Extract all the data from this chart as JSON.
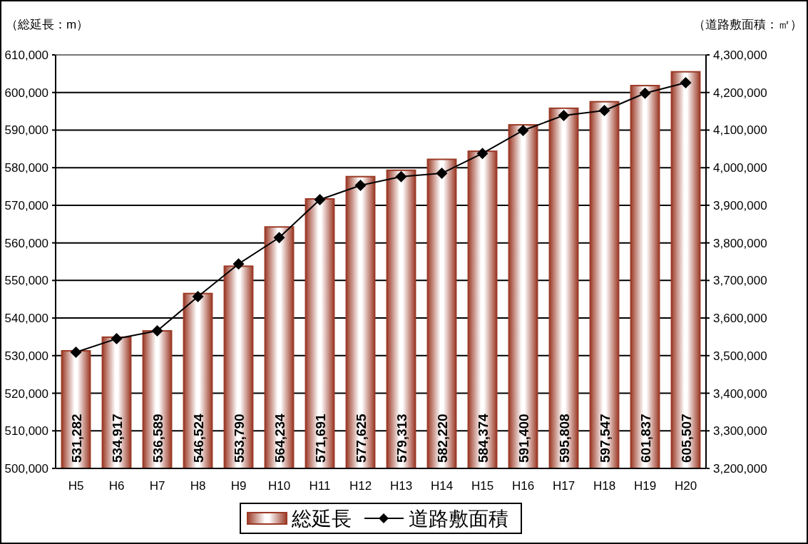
{
  "chart_data": {
    "type": "bar",
    "ylabel": "（総延長：m）",
    "y2label": "（道路敷面積：㎡）",
    "categories": [
      "H5",
      "H6",
      "H7",
      "H8",
      "H9",
      "H10",
      "H11",
      "H12",
      "H13",
      "H14",
      "H15",
      "H16",
      "H17",
      "H18",
      "H19",
      "H20"
    ],
    "series": [
      {
        "name": "総延長",
        "color": "#9c3b28",
        "values": [
          531282,
          534917,
          536589,
          546524,
          553790,
          564234,
          571691,
          577625,
          579313,
          582220,
          584374,
          591400,
          595808,
          597547,
          601837,
          605507
        ],
        "value_labels": [
          "531,282",
          "534,917",
          "536,589",
          "546,524",
          "553,790",
          "564,234",
          "571,691",
          "577,625",
          "579,313",
          "582,220",
          "584,374",
          "591,400",
          "595,808",
          "597,547",
          "601,837",
          "605,507"
        ]
      },
      {
        "name": "道路敷面積",
        "type": "line",
        "axis": "y2",
        "color": "#000000",
        "marker": "diamond",
        "values": [
          3509000,
          3545000,
          3566000,
          3657000,
          3744000,
          3814000,
          3915000,
          3953000,
          3976000,
          3985000,
          4038000,
          4099000,
          4139000,
          4152000,
          4198000,
          4226000
        ]
      }
    ],
    "ylim": [
      500000,
      610000
    ],
    "yticks": [
      {
        "value": 500000,
        "label": "500,000"
      },
      {
        "value": 510000,
        "label": "510,000"
      },
      {
        "value": 520000,
        "label": "520,000"
      },
      {
        "value": 530000,
        "label": "530,000"
      },
      {
        "value": 540000,
        "label": "540,000"
      },
      {
        "value": 550000,
        "label": "550,000"
      },
      {
        "value": 560000,
        "label": "560,000"
      },
      {
        "value": 570000,
        "label": "570,000"
      },
      {
        "value": 580000,
        "label": "580,000"
      },
      {
        "value": 590000,
        "label": "590,000"
      },
      {
        "value": 600000,
        "label": "600,000"
      },
      {
        "value": 610000,
        "label": "610,000"
      }
    ],
    "y2lim": [
      3200000,
      4300000
    ],
    "y2ticks": [
      {
        "value": 3200000,
        "label": "3,200,000"
      },
      {
        "value": 3300000,
        "label": "3,300,000"
      },
      {
        "value": 3400000,
        "label": "3,400,000"
      },
      {
        "value": 3500000,
        "label": "3,500,000"
      },
      {
        "value": 3600000,
        "label": "3,600,000"
      },
      {
        "value": 3700000,
        "label": "3,700,000"
      },
      {
        "value": 3800000,
        "label": "3,800,000"
      },
      {
        "value": 3900000,
        "label": "3,900,000"
      },
      {
        "value": 4000000,
        "label": "4,000,000"
      },
      {
        "value": 4100000,
        "label": "4,100,000"
      },
      {
        "value": 4200000,
        "label": "4,200,000"
      },
      {
        "value": 4300000,
        "label": "4,300,000"
      }
    ],
    "grid": "y",
    "legend": "bottom"
  }
}
